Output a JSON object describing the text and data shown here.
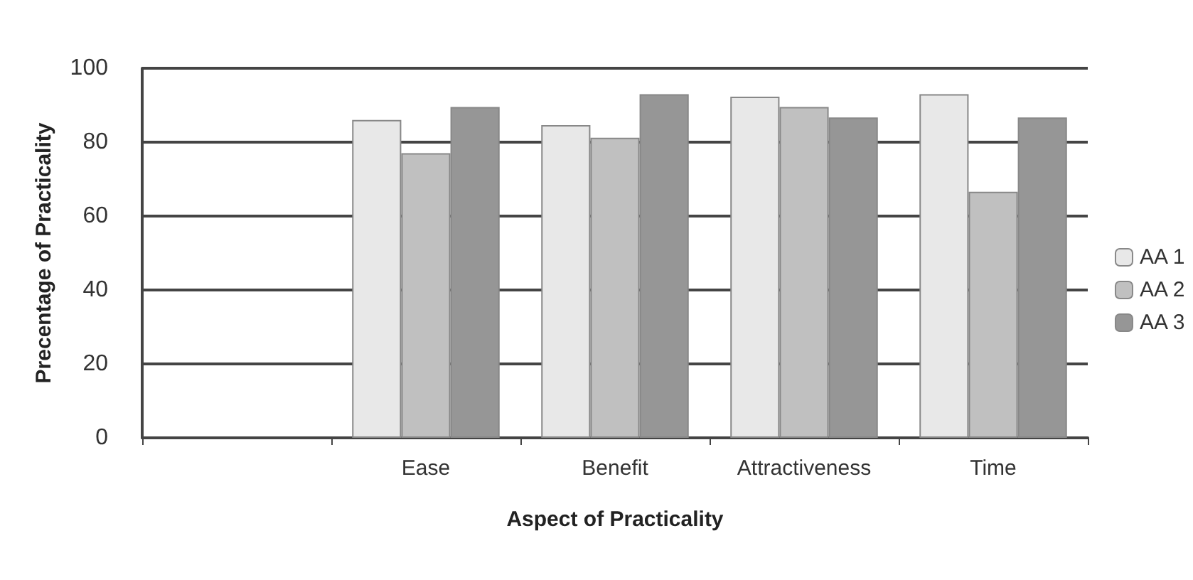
{
  "chart_data": {
    "type": "bar",
    "xlabel": "Aspect of Practicality",
    "ylabel": "Precentage of Practicality",
    "categories": [
      null,
      "Ease",
      "Benefit",
      "Attractiveness",
      "Time"
    ],
    "series": [
      {
        "name": "AA 1",
        "color": "#e8e8e8",
        "values": [
          null,
          86,
          84.6,
          92.3,
          93
        ]
      },
      {
        "name": "AA 2",
        "color": "#c0c0c0",
        "values": [
          null,
          77,
          81.2,
          89.5,
          66.6
        ]
      },
      {
        "name": "AA 3",
        "color": "#969696",
        "values": [
          null,
          89.5,
          93,
          86.7,
          86.7
        ]
      }
    ],
    "ylim": [
      0,
      100
    ],
    "yticks": [
      0,
      20,
      40,
      60,
      80,
      100
    ],
    "grid": "y",
    "legend": "right"
  }
}
